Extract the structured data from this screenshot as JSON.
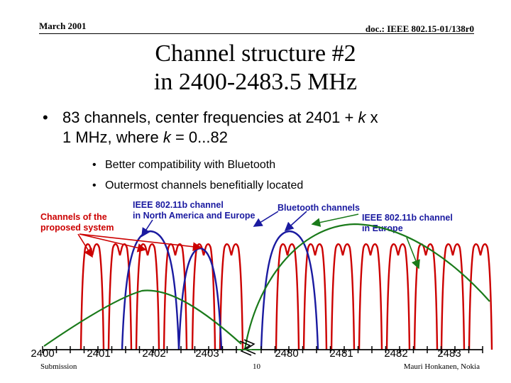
{
  "header": {
    "date": "March 2001",
    "doc_id": "doc.: IEEE 802.15-01/138r0"
  },
  "title": {
    "line1": "Channel structure #2",
    "line2": "in 2400-2483.5 MHz"
  },
  "bullets": {
    "main": {
      "dot": "•",
      "line1_a": "83 channels, center frequencies at 2401 + ",
      "line1_k": "k",
      "line1_b": " x",
      "line2_a": "1 MHz, where ",
      "line2_k": "k",
      "line2_b": " = 0...82"
    },
    "sub": [
      {
        "dot": "•",
        "text": "Better compatibility with Bluetooth"
      },
      {
        "dot": "•",
        "text": "Outermost channels benefitially located"
      }
    ]
  },
  "callouts": {
    "proposed_line1": "Channels of the",
    "proposed_line2": "proposed system",
    "na_line1": "IEEE 802.11b channel",
    "na_line2": "in North America and Europe",
    "bluetooth": "Bluetooth channels",
    "eu_line1": "IEEE 802.11b channel",
    "eu_line2": "in Europe"
  },
  "axis": {
    "ticks": [
      "2400",
      "2401",
      "2402",
      "2403",
      "2480",
      "2481",
      "2482",
      "2483"
    ]
  },
  "colors": {
    "red": "#cc0000",
    "blue": "#1a1aa0",
    "green": "#1a7a1a"
  },
  "footer": {
    "left": "Submission",
    "page": "10",
    "right": "Mauri Honkanen, Nokia"
  }
}
